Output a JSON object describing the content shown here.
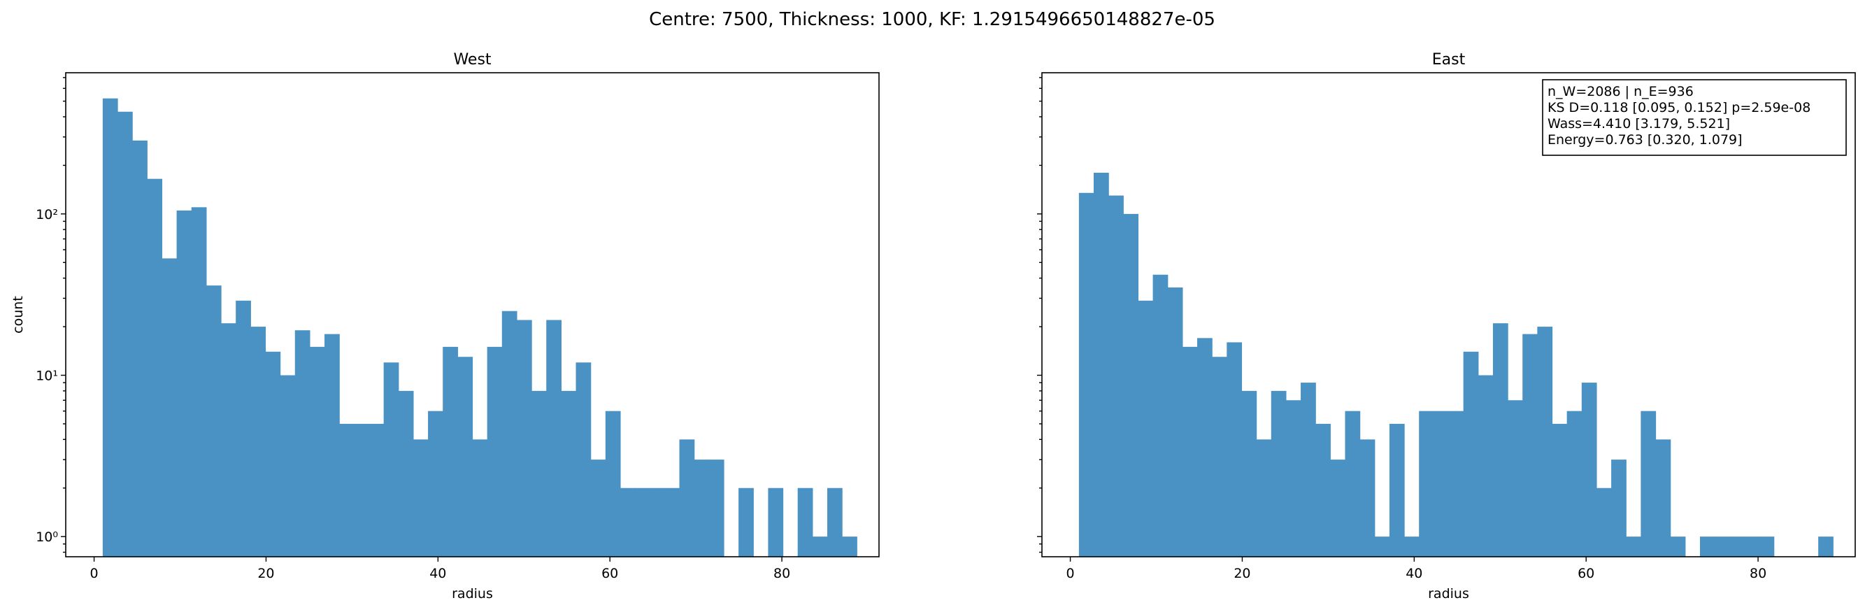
{
  "suptitle": "Centre: 7500, Thickness: 1000, KF: 1.2915496650148827e-05",
  "colors": {
    "bar": "#4a91c4"
  },
  "stats_box": {
    "lines": [
      "n_W=2086 | n_E=936",
      "KS D=0.118 [0.095, 0.152]  p=2.59e-08",
      "Wass=4.410 [3.179, 5.521]",
      "Energy=0.763 [0.320, 1.079]"
    ],
    "placement": "upper-right of East panel"
  },
  "chart_data": [
    {
      "type": "bar",
      "title": "West",
      "xlabel": "radius",
      "ylabel": "count",
      "yscale": "log",
      "xlim": [
        -3.3,
        91.3
      ],
      "ylim": [
        0.75,
        750
      ],
      "xticks": [
        0,
        20,
        40,
        60,
        80
      ],
      "xtick_labels": [
        "0",
        "20",
        "40",
        "60",
        "80"
      ],
      "yticks": [
        1,
        10,
        100
      ],
      "ytick_labels": [
        "10⁰",
        "10¹",
        "10²"
      ],
      "bin_start": 1.0,
      "bin_width": 1.72,
      "values": [
        520,
        430,
        285,
        165,
        53,
        105,
        110,
        36,
        21,
        29,
        20,
        14,
        10,
        19,
        15,
        18,
        5,
        5,
        5,
        12,
        8,
        4,
        6,
        15,
        13,
        4,
        15,
        25,
        22,
        8,
        22,
        8,
        12,
        3,
        6,
        2,
        2,
        2,
        2,
        4,
        3,
        3,
        0,
        2,
        0,
        2,
        0,
        2,
        1,
        2,
        1
      ]
    },
    {
      "type": "bar",
      "title": "East",
      "xlabel": "radius",
      "ylabel": "",
      "yscale": "log",
      "xlim": [
        -3.3,
        91.3
      ],
      "ylim": [
        0.75,
        750
      ],
      "xticks": [
        0,
        20,
        40,
        60,
        80
      ],
      "xtick_labels": [
        "0",
        "20",
        "40",
        "60",
        "80"
      ],
      "yticks": [
        1,
        10,
        100
      ],
      "ytick_labels": [],
      "bin_start": 1.0,
      "bin_width": 1.72,
      "values": [
        135,
        180,
        130,
        100,
        29,
        42,
        35,
        15,
        17,
        13,
        16,
        8,
        4,
        8,
        7,
        9,
        5,
        3,
        6,
        4,
        1,
        5,
        1,
        6,
        6,
        6,
        14,
        10,
        21,
        7,
        18,
        20,
        5,
        6,
        9,
        2,
        3,
        1,
        6,
        4,
        1,
        0,
        1,
        1,
        1,
        1,
        1,
        0,
        0,
        0,
        1
      ]
    }
  ]
}
